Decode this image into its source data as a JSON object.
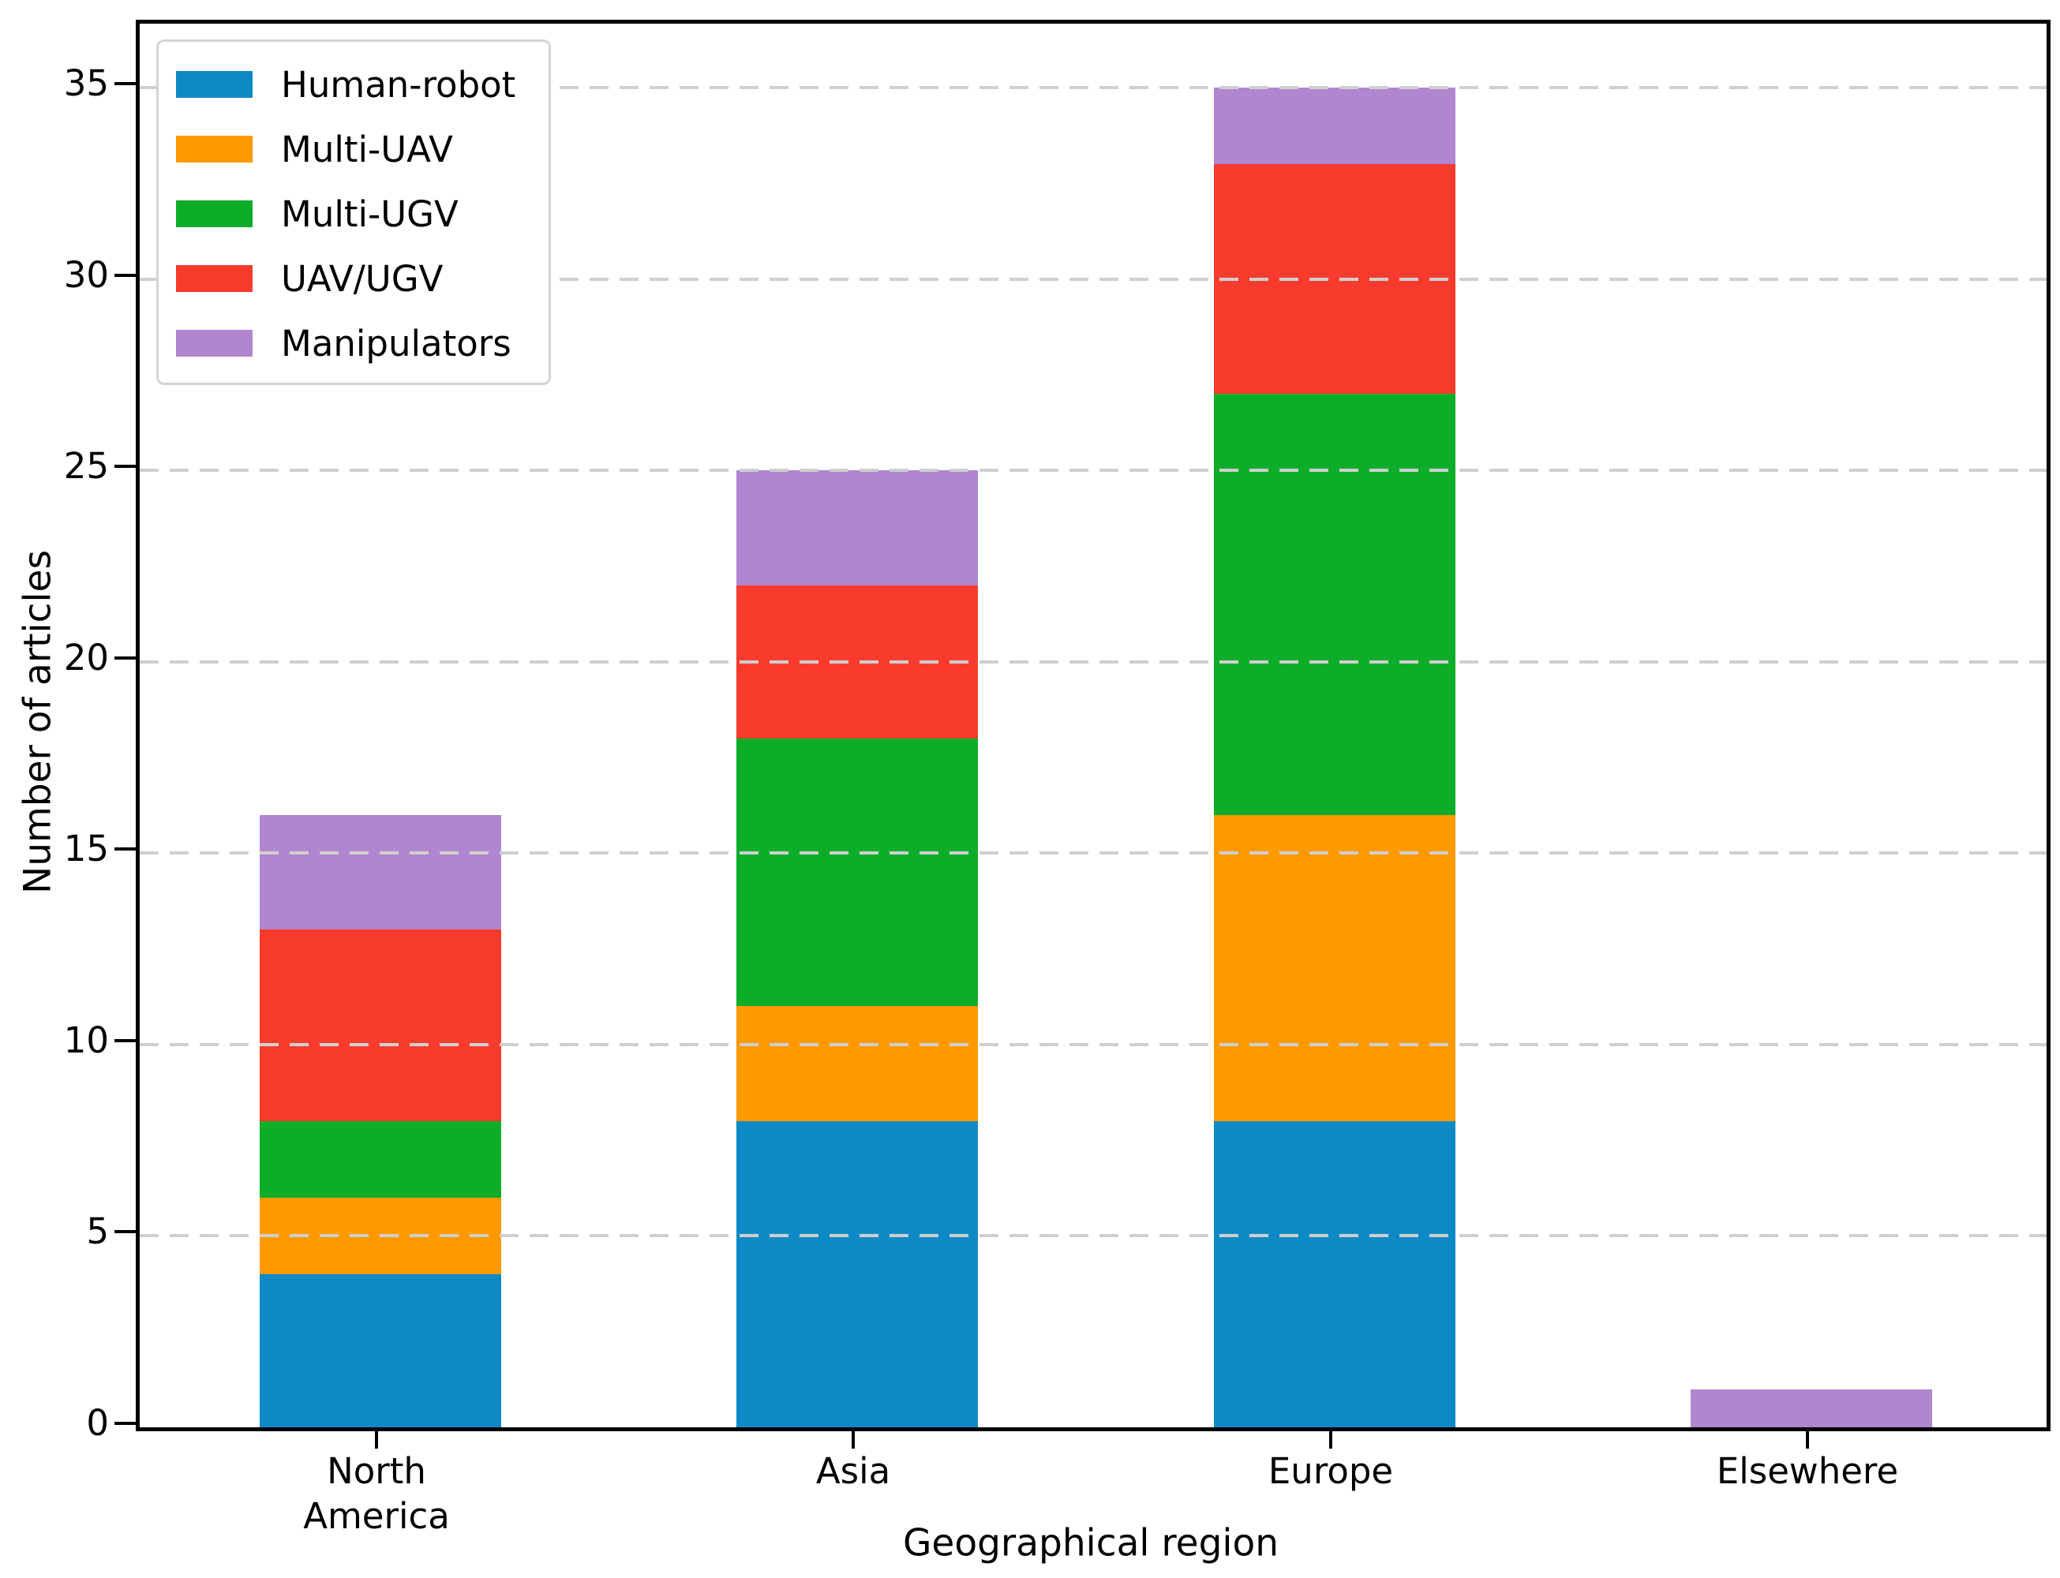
{
  "chart_data": {
    "type": "bar",
    "stacked": true,
    "title": "",
    "xlabel": "Geographical region",
    "ylabel": "Number of articles",
    "categories": [
      "North America",
      "Asia",
      "Europe",
      "Elsewhere"
    ],
    "category_labels": [
      [
        "North",
        "America"
      ],
      [
        "Asia"
      ],
      [
        "Europe"
      ],
      [
        "Elsewhere"
      ]
    ],
    "series": [
      {
        "name": "Human-robot",
        "color": "#0d8ac6",
        "values": [
          4,
          8,
          8,
          0
        ]
      },
      {
        "name": "Multi-UAV",
        "color": "#fe9900",
        "values": [
          2,
          3,
          8,
          0
        ]
      },
      {
        "name": "Multi-UGV",
        "color": "#0dad2a",
        "values": [
          2,
          7,
          11,
          0
        ]
      },
      {
        "name": "UAV/UGV",
        "color": "#f93b2d",
        "values": [
          5,
          4,
          6,
          0
        ]
      },
      {
        "name": "Manipulators",
        "color": "#b086d0",
        "values": [
          3,
          3,
          2,
          1
        ]
      }
    ],
    "totals": [
      16,
      25,
      35,
      1
    ],
    "yticks": [
      0,
      5,
      10,
      15,
      20,
      25,
      30,
      35
    ],
    "ylim": [
      0,
      36.7
    ],
    "grid": "horizontal dashed, drawn above bars",
    "legend_position": "upper left"
  }
}
